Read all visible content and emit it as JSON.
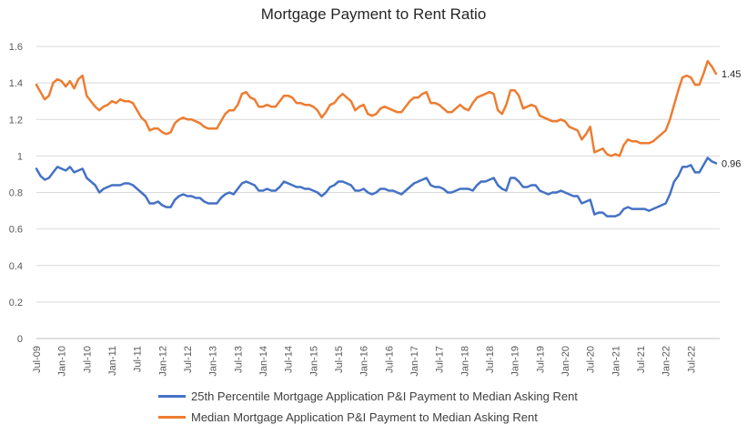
{
  "chart_data": {
    "type": "line",
    "title": "Mortgage Payment to Rent Ratio",
    "xlabel": "",
    "ylabel": "",
    "ylim": [
      0,
      1.6
    ],
    "y_ticks": [
      "0",
      "0.2",
      "0.4",
      "0.6",
      "0.8",
      "1",
      "1.2",
      "1.4",
      "1.6"
    ],
    "x_start": "Jul-09",
    "x_frequency": "monthly",
    "x_tick_labels": [
      "Jul-09",
      "Jan-10",
      "Jul-10",
      "Jan-11",
      "Jul-11",
      "Jan-12",
      "Jul-12",
      "Jan-13",
      "Jul-13",
      "Jan-14",
      "Jul-14",
      "Jan-15",
      "Jul-15",
      "Jan-16",
      "Jul-16",
      "Jan-17",
      "Jul-17",
      "Jan-18",
      "Jul-18",
      "Jan-19",
      "Jul-19",
      "Jan-20",
      "Jul-20",
      "Jan-21",
      "Jul-21",
      "Jan-22",
      "Jul-22"
    ],
    "grid": "horizontal",
    "legend_position": "bottom",
    "series": [
      {
        "name": "25th Percentile Mortgage Application P&I Payment to Median Asking Rent",
        "color": "#4472C4",
        "end_label": "0.96",
        "values": [
          0.93,
          0.89,
          0.87,
          0.88,
          0.91,
          0.94,
          0.93,
          0.92,
          0.94,
          0.91,
          0.92,
          0.93,
          0.88,
          0.86,
          0.84,
          0.8,
          0.82,
          0.83,
          0.84,
          0.84,
          0.84,
          0.85,
          0.85,
          0.84,
          0.82,
          0.8,
          0.78,
          0.74,
          0.74,
          0.75,
          0.73,
          0.72,
          0.72,
          0.76,
          0.78,
          0.79,
          0.78,
          0.78,
          0.77,
          0.77,
          0.75,
          0.74,
          0.74,
          0.74,
          0.77,
          0.79,
          0.8,
          0.79,
          0.82,
          0.85,
          0.86,
          0.85,
          0.84,
          0.81,
          0.81,
          0.82,
          0.81,
          0.81,
          0.83,
          0.86,
          0.85,
          0.84,
          0.83,
          0.83,
          0.82,
          0.82,
          0.81,
          0.8,
          0.78,
          0.8,
          0.83,
          0.84,
          0.86,
          0.86,
          0.85,
          0.84,
          0.81,
          0.81,
          0.82,
          0.8,
          0.79,
          0.8,
          0.82,
          0.82,
          0.81,
          0.81,
          0.8,
          0.79,
          0.81,
          0.83,
          0.85,
          0.86,
          0.87,
          0.88,
          0.84,
          0.83,
          0.83,
          0.82,
          0.8,
          0.8,
          0.81,
          0.82,
          0.82,
          0.82,
          0.81,
          0.84,
          0.86,
          0.86,
          0.87,
          0.88,
          0.84,
          0.82,
          0.81,
          0.88,
          0.88,
          0.86,
          0.83,
          0.83,
          0.84,
          0.84,
          0.81,
          0.8,
          0.79,
          0.8,
          0.8,
          0.81,
          0.8,
          0.79,
          0.78,
          0.78,
          0.74,
          0.75,
          0.76,
          0.68,
          0.69,
          0.69,
          0.67,
          0.67,
          0.67,
          0.68,
          0.71,
          0.72,
          0.71,
          0.71,
          0.71,
          0.71,
          0.7,
          0.71,
          0.72,
          0.73,
          0.74,
          0.79,
          0.86,
          0.89,
          0.94,
          0.94,
          0.95,
          0.91,
          0.91,
          0.95,
          0.99,
          0.97,
          0.96
        ]
      },
      {
        "name": "Median Mortgage Application P&I Payment to Median Asking Rent",
        "color": "#ED7D31",
        "end_label": "1.45",
        "values": [
          1.39,
          1.35,
          1.31,
          1.33,
          1.4,
          1.42,
          1.41,
          1.38,
          1.41,
          1.37,
          1.42,
          1.44,
          1.33,
          1.3,
          1.27,
          1.25,
          1.27,
          1.28,
          1.3,
          1.29,
          1.31,
          1.3,
          1.3,
          1.29,
          1.25,
          1.21,
          1.19,
          1.14,
          1.15,
          1.15,
          1.13,
          1.12,
          1.13,
          1.18,
          1.2,
          1.21,
          1.2,
          1.2,
          1.19,
          1.18,
          1.16,
          1.15,
          1.15,
          1.15,
          1.19,
          1.23,
          1.25,
          1.25,
          1.28,
          1.34,
          1.35,
          1.32,
          1.31,
          1.27,
          1.27,
          1.28,
          1.27,
          1.27,
          1.3,
          1.33,
          1.33,
          1.32,
          1.29,
          1.29,
          1.28,
          1.28,
          1.27,
          1.25,
          1.21,
          1.24,
          1.28,
          1.29,
          1.32,
          1.34,
          1.32,
          1.3,
          1.25,
          1.27,
          1.28,
          1.23,
          1.22,
          1.23,
          1.26,
          1.27,
          1.26,
          1.25,
          1.24,
          1.24,
          1.27,
          1.3,
          1.32,
          1.32,
          1.34,
          1.35,
          1.29,
          1.29,
          1.28,
          1.26,
          1.24,
          1.24,
          1.26,
          1.28,
          1.26,
          1.25,
          1.29,
          1.32,
          1.33,
          1.34,
          1.35,
          1.34,
          1.25,
          1.23,
          1.28,
          1.36,
          1.36,
          1.33,
          1.26,
          1.27,
          1.28,
          1.27,
          1.22,
          1.21,
          1.2,
          1.19,
          1.19,
          1.2,
          1.19,
          1.16,
          1.15,
          1.14,
          1.09,
          1.12,
          1.16,
          1.02,
          1.03,
          1.04,
          1.01,
          1.0,
          1.01,
          1.0,
          1.06,
          1.09,
          1.08,
          1.08,
          1.07,
          1.07,
          1.07,
          1.08,
          1.1,
          1.12,
          1.14,
          1.2,
          1.28,
          1.36,
          1.43,
          1.44,
          1.43,
          1.39,
          1.39,
          1.45,
          1.52,
          1.49,
          1.45
        ]
      }
    ]
  }
}
